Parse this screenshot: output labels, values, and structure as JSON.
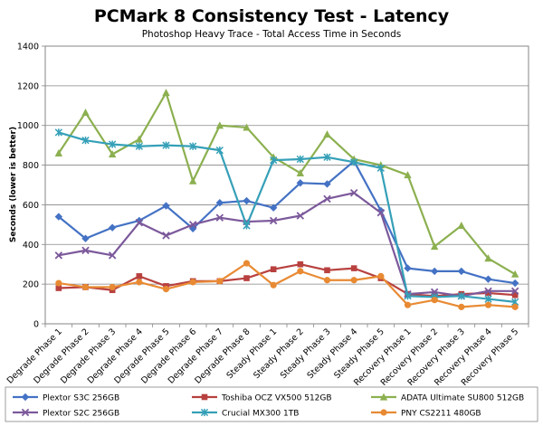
{
  "chart_data": {
    "type": "line",
    "title": "PCMark 8 Consistency Test - Latency",
    "subtitle": "Photoshop Heavy Trace - Total Access Time in Seconds",
    "xlabel": "",
    "ylabel": "Seconds (lower is better)",
    "ylim": [
      0,
      1400
    ],
    "yticks": [
      0,
      200,
      400,
      600,
      800,
      1000,
      1200,
      1400
    ],
    "grid": true,
    "legend_position": "bottom",
    "categories": [
      "Degrade Phase 1",
      "Degrade Phase 2",
      "Degrade Phase 3",
      "Degrade Phase 4",
      "Degrade Phase 5",
      "Degrade Phase 6",
      "Degrade Phase 7",
      "Degrade Phase 8",
      "Steady Phase 1",
      "Steady Phase 2",
      "Steady Phase 3",
      "Steady Phase 4",
      "Steady Phase 5",
      "Recovery Phase 1",
      "Recovery Phase 2",
      "Recovery Phase 3",
      "Recovery Phase 4",
      "Recovery Phase 5"
    ],
    "series": [
      {
        "name": "Plextor S3C 256GB",
        "color": "#4472C4",
        "marker": "diamond",
        "values": [
          540,
          430,
          485,
          520,
          595,
          480,
          610,
          620,
          585,
          710,
          705,
          820,
          570,
          280,
          265,
          265,
          225,
          205
        ]
      },
      {
        "name": "Toshiba OCZ VX500 512GB",
        "color": "#B8413F",
        "marker": "square",
        "values": [
          180,
          185,
          170,
          240,
          190,
          215,
          215,
          230,
          275,
          300,
          270,
          280,
          230,
          150,
          140,
          150,
          155,
          145
        ]
      },
      {
        "name": "ADATA Ultimate SU800 512GB",
        "color": "#8CB050",
        "marker": "triangle",
        "values": [
          860,
          1065,
          855,
          930,
          1165,
          720,
          1000,
          990,
          840,
          760,
          955,
          830,
          800,
          750,
          390,
          495,
          330,
          250
        ]
      },
      {
        "name": "Plextor S2C 256GB",
        "color": "#7C599B",
        "marker": "x",
        "values": [
          345,
          370,
          345,
          510,
          445,
          500,
          535,
          515,
          520,
          545,
          630,
          660,
          560,
          150,
          160,
          140,
          165,
          165
        ]
      },
      {
        "name": "Crucial MX300 1TB",
        "color": "#35A0B8",
        "marker": "star",
        "values": [
          965,
          925,
          905,
          895,
          900,
          895,
          875,
          495,
          825,
          830,
          840,
          815,
          785,
          140,
          135,
          140,
          125,
          110
        ]
      },
      {
        "name": "PNY CS2211 480GB",
        "color": "#E88A33",
        "marker": "circle",
        "values": [
          205,
          185,
          185,
          210,
          175,
          210,
          215,
          305,
          195,
          265,
          220,
          220,
          240,
          95,
          120,
          85,
          95,
          85
        ]
      }
    ]
  }
}
